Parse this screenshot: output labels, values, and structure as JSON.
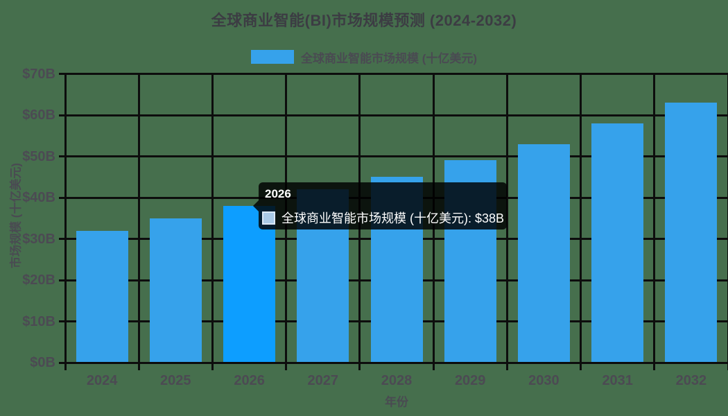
{
  "title": "全球商业智能(BI)市场规模预测 (2024-2032)",
  "legend": {
    "label": "全球商业智能市场规模 (十亿美元)"
  },
  "chart_data": {
    "type": "bar",
    "title": "全球商业智能(BI)市场规模预测 (2024-2032)",
    "categories": [
      "2024",
      "2025",
      "2026",
      "2027",
      "2028",
      "2029",
      "2030",
      "2031",
      "2032"
    ],
    "series": [
      {
        "name": "全球商业智能市场规模 (十亿美元)",
        "values": [
          32,
          35,
          38,
          42,
          45,
          49,
          53,
          58,
          63
        ]
      }
    ],
    "xlabel": "年份",
    "ylabel": "市场规模 (十亿美元)",
    "ylim": [
      0,
      70
    ],
    "ytick_step": 10,
    "ytick_labels": [
      "$0B",
      "$10B",
      "$20B",
      "$30B",
      "$40B",
      "$50B",
      "$60B",
      "$70B"
    ],
    "grid": true,
    "legend_position": "top",
    "highlighted_index": 2
  },
  "tooltip": {
    "title": "2026",
    "line": "全球商业智能市场规模 (十亿美元): $38B"
  },
  "colors": {
    "background": "#466f4d",
    "grid": "#0d0d0d",
    "bar": "#36a2eb",
    "bar_highlight": "#0d9eff",
    "title_text": "#3c3c43",
    "tick_text": "#4c4a53",
    "tooltip_bg": "rgba(0,0,0,0.82)",
    "tooltip_text": "#ffffff",
    "tooltip_swatch_fill": "#a9cae6",
    "tooltip_swatch_border": "#dce9f5"
  }
}
